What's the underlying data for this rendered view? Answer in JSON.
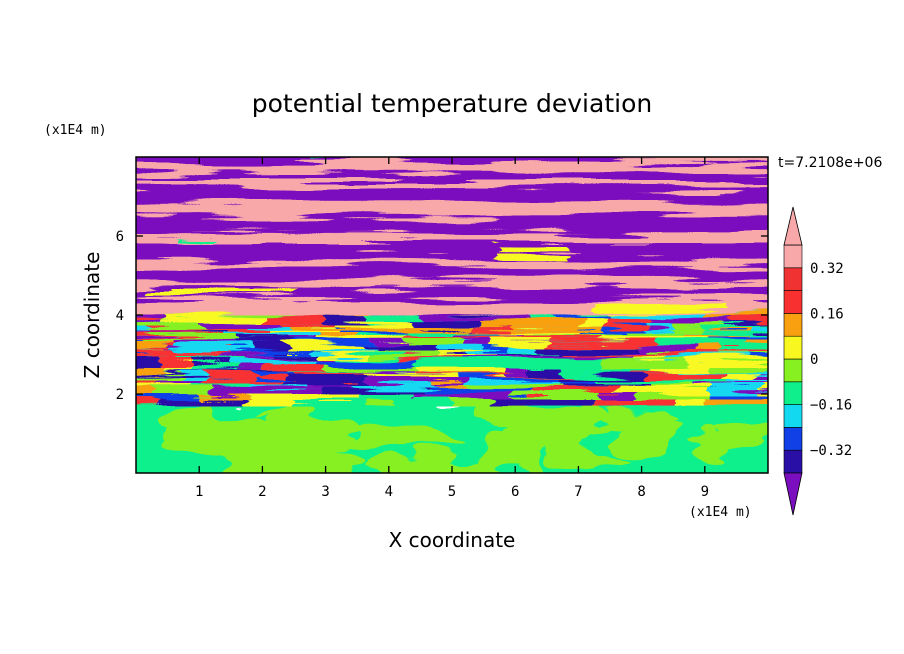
{
  "chart_data": {
    "type": "heatmap",
    "title": "potential temperature deviation",
    "xlabel": "X coordinate",
    "ylabel": "Z coordinate",
    "x_units": "(x1E4 m)",
    "y_units": "(x1E4 m)",
    "time_label": "t=7.2108e+06",
    "xlim": [
      0,
      10
    ],
    "ylim": [
      0,
      8
    ],
    "x_ticks": [
      "1",
      "2",
      "3",
      "4",
      "5",
      "6",
      "7",
      "8",
      "9"
    ],
    "y_ticks": [
      "2",
      "4",
      "6"
    ],
    "colorbar": {
      "levels": [
        -0.4,
        -0.32,
        -0.24,
        -0.16,
        -0.08,
        0,
        0.08,
        0.16,
        0.24,
        0.32,
        0.4
      ],
      "labels": [
        "0.32",
        "0.16",
        "0",
        "−0.16",
        "−0.32"
      ],
      "label_values": [
        0.32,
        0.16,
        0,
        -0.16,
        -0.32
      ],
      "colors": [
        "#7b0fbf",
        "#2a0fa6",
        "#1040e6",
        "#12d8f0",
        "#0ff08c",
        "#86f020",
        "#f8f820",
        "#f8a010",
        "#f83030",
        "#f03232",
        "#f8a8a8"
      ],
      "extend": "both",
      "under_color": "#7b0fbf",
      "over_color": "#f8a8a8"
    },
    "regions": [
      {
        "z_range": [
          0,
          1.9
        ],
        "dominant_values": [
          -0.04,
          0.04
        ],
        "description_colors": [
          "#0ff08c",
          "#86f020"
        ]
      },
      {
        "z_range": [
          1.9,
          4.3
        ],
        "dominant_values": [
          -0.36,
          0.36
        ],
        "description_colors": [
          "#2a0fa6",
          "#12d8f0",
          "#f8f820",
          "#f83030"
        ]
      },
      {
        "z_range": [
          4.3,
          8
        ],
        "dominant_values": [
          -0.45,
          0.45
        ],
        "description_colors": [
          "#7b0fbf",
          "#f8a8a8"
        ]
      }
    ],
    "grid": false,
    "legend": "right colorbar"
  }
}
